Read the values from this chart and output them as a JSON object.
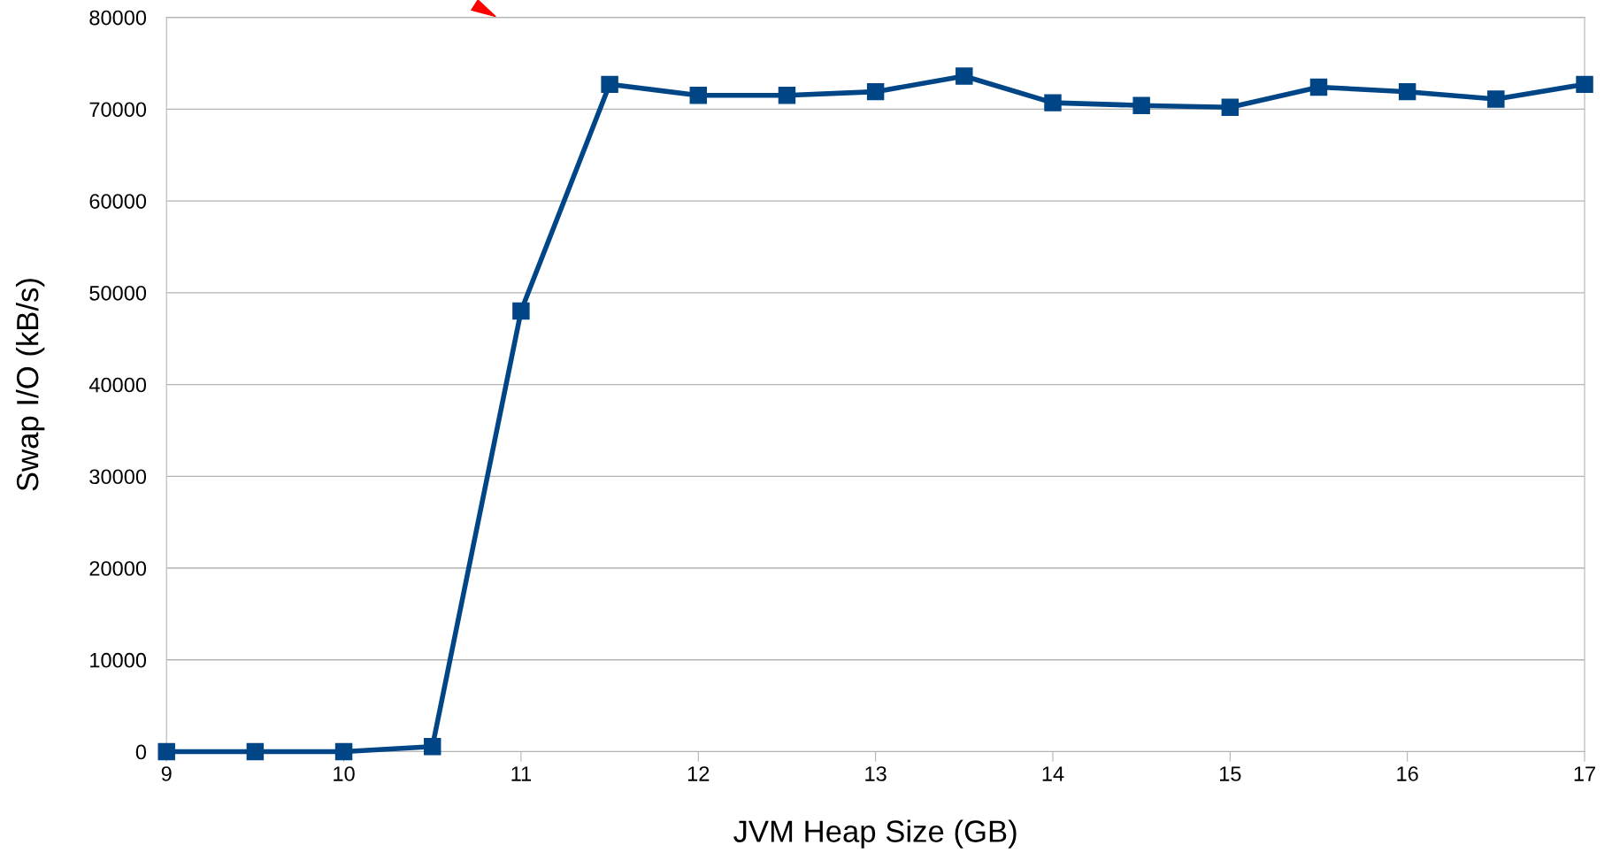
{
  "chart_data": {
    "type": "line",
    "xlabel": "JVM Heap Size (GB)",
    "ylabel": "Swap I/O (kB/s)",
    "x": [
      9,
      9.5,
      10,
      10.5,
      11,
      11.5,
      12,
      12.5,
      13,
      13.5,
      14,
      14.5,
      15,
      15.5,
      16,
      16.5,
      17
    ],
    "series": [
      {
        "color": "#004586",
        "values": [
          0,
          0,
          0,
          560,
          48000,
          72700,
          71500,
          71500,
          71900,
          73600,
          70700,
          70400,
          70200,
          72400,
          71900,
          71100,
          72700
        ]
      }
    ],
    "xlim": [
      9,
      17
    ],
    "xticks": [
      9,
      10,
      11,
      12,
      13,
      14,
      15,
      16,
      17
    ],
    "ylim": [
      0,
      80000
    ],
    "yticks": [
      0,
      10000,
      20000,
      30000,
      40000,
      50000,
      60000,
      70000,
      80000
    ],
    "grid": "y",
    "marker": "square",
    "line_style": "solid",
    "legend": false
  }
}
